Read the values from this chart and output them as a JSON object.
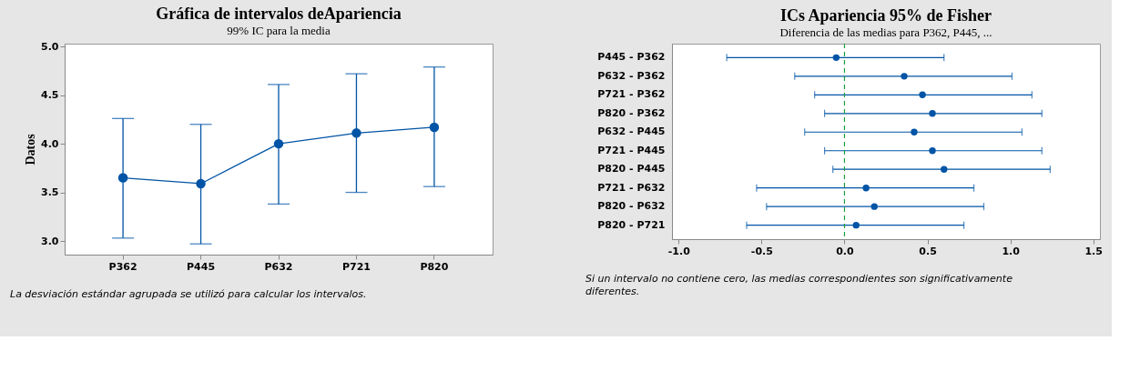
{
  "chart_data": [
    {
      "type": "line",
      "title": "Gráfica de intervalos deApariencia",
      "subtitle": "99% IC para la media",
      "ylabel": "Datos",
      "categories": [
        "P362",
        "P445",
        "P632",
        "P721",
        "P820"
      ],
      "series": [
        {
          "color": "#0054a6",
          "values": [
            3.65,
            3.59,
            4.0,
            4.11,
            4.17
          ],
          "errors": [
            [
              3.03,
              4.26
            ],
            [
              2.97,
              4.2
            ],
            [
              3.38,
              4.61
            ],
            [
              3.5,
              4.72
            ],
            [
              3.56,
              4.79
            ]
          ]
        }
      ],
      "ylim": [
        2.86,
        5.03
      ],
      "yticks": [
        {
          "value": 3,
          "label": "3.0"
        },
        3.5,
        {
          "value": 4,
          "label": "4.0"
        },
        4.5,
        {
          "value": 5,
          "label": "5.0"
        }
      ],
      "marker": "circle",
      "line_style": "solid",
      "grid": false,
      "annotations": [
        "La desviación estándar agrupada se utilizó para calcular los intervalos."
      ]
    },
    {
      "type": "scatter",
      "orientation": "horizontal",
      "title": "ICs Apariencia 95% de Fisher",
      "subtitle": "Diferencia de las medias para P362, P445, ...",
      "categories": [
        "P445 - P362",
        "P632 - P362",
        "P721 - P362",
        "P820 - P362",
        "P632 - P445",
        "P721 - P445",
        "P820 - P445",
        "P721 - P632",
        "P820 - P632",
        "P820 - P721"
      ],
      "series": [
        {
          "color": "#0054a6",
          "values": [
            -0.05,
            0.36,
            0.47,
            0.53,
            0.42,
            0.53,
            0.6,
            0.13,
            0.18,
            0.07
          ],
          "errors": [
            [
              -0.71,
              0.6
            ],
            [
              -0.3,
              1.01
            ],
            [
              -0.18,
              1.13
            ],
            [
              -0.12,
              1.19
            ],
            [
              -0.24,
              1.07
            ],
            [
              -0.12,
              1.19
            ],
            [
              -0.07,
              1.24
            ],
            [
              -0.53,
              0.78
            ],
            [
              -0.47,
              0.84
            ],
            [
              -0.59,
              0.72
            ]
          ]
        }
      ],
      "xlim": [
        -1.04,
        1.54
      ],
      "xticks": [
        {
          "value": -1.0,
          "label": "-1.0"
        },
        {
          "value": -0.5,
          "label": "-0.5"
        },
        {
          "value": 0.0,
          "label": "0.0"
        },
        {
          "value": 0.5,
          "label": "0.5"
        },
        {
          "value": 1.0,
          "label": "1.0"
        },
        {
          "value": 1.5,
          "label": "1.5"
        }
      ],
      "ref_lines": [
        {
          "axis": "x",
          "value": 0,
          "color": "#1a9e3a",
          "line_style": "dashed"
        }
      ],
      "marker": "circle",
      "grid": false,
      "annotations": [
        "Si un intervalo no contiene cero, las medias correspondientes son significativamente",
        "diferentes."
      ]
    }
  ]
}
